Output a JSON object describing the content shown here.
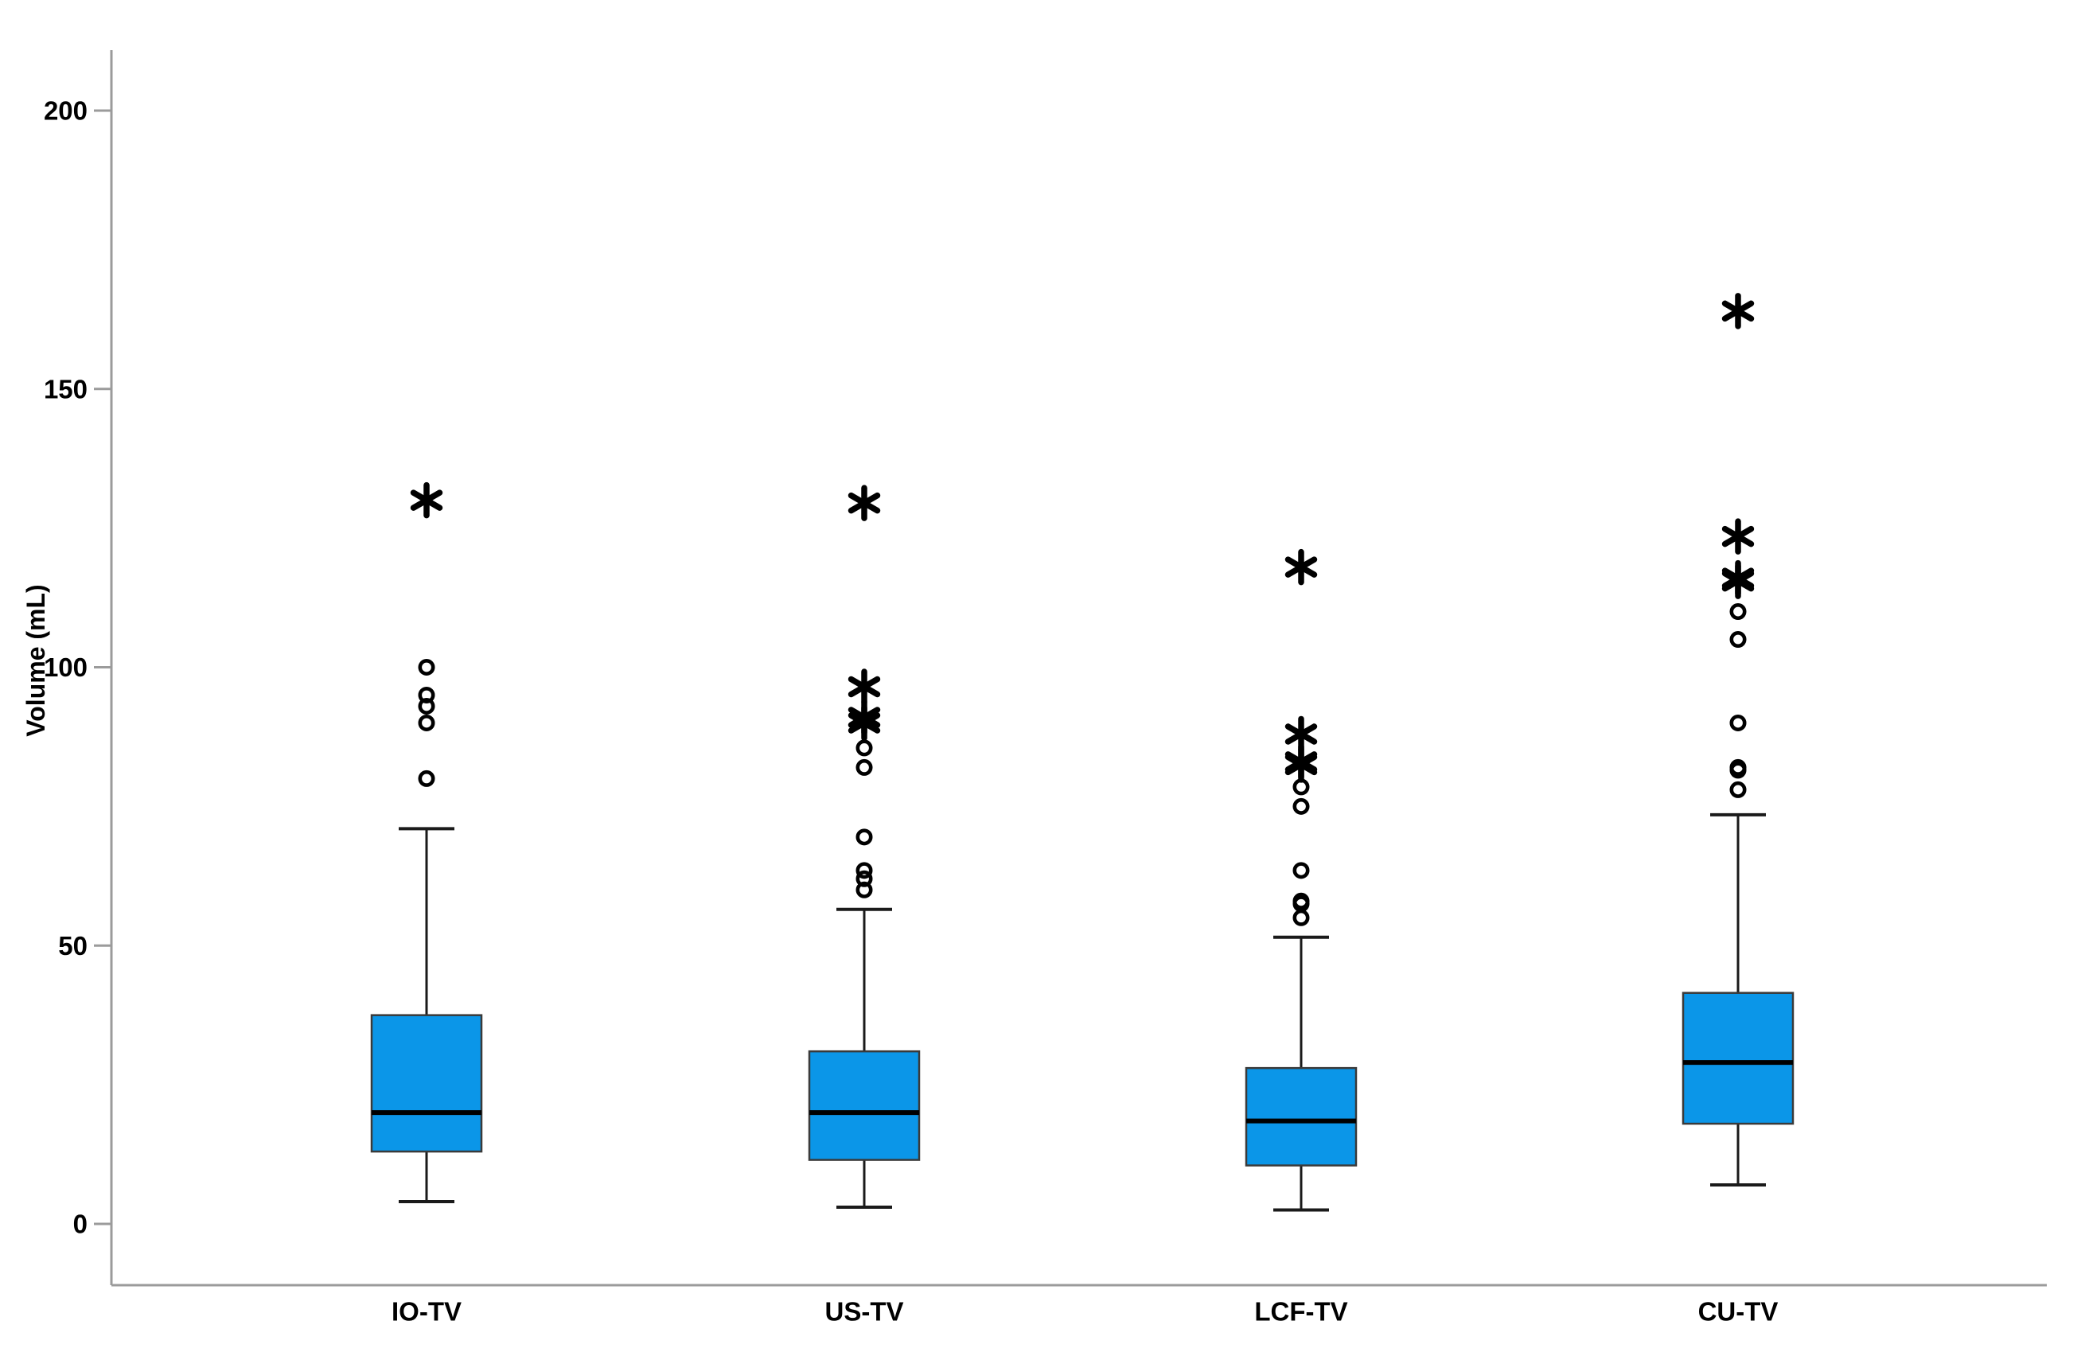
{
  "figure": {
    "background": "#ffffff"
  },
  "chart_data": {
    "type": "box",
    "title": "",
    "xlabel": "",
    "ylabel": "Volume (mL)",
    "ylim": [
      -11,
      211
    ],
    "yticks": [
      0,
      50,
      100,
      150,
      200
    ],
    "grid": false,
    "legend": "none",
    "categories": [
      "IO-TV",
      "US-TV",
      "LCF-TV",
      "CU-TV"
    ],
    "series": [
      {
        "category": "IO-TV",
        "whisker_low": 4,
        "q1": 13,
        "median": 20,
        "q3": 37.5,
        "whisker_high": 71,
        "outliers_circle": [
          80,
          90,
          93,
          95,
          100
        ],
        "outliers_extreme": [
          130
        ]
      },
      {
        "category": "US-TV",
        "whisker_low": 3,
        "q1": 11.5,
        "median": 20,
        "q3": 31,
        "whisker_high": 56.5,
        "outliers_circle": [
          60,
          62,
          63.5,
          69.5,
          82,
          85.5
        ],
        "outliers_extreme": [
          90,
          91,
          96.5,
          129.5
        ]
      },
      {
        "category": "LCF-TV",
        "whisker_low": 2.5,
        "q1": 10.5,
        "median": 18.5,
        "q3": 28,
        "whisker_high": 51.5,
        "outliers_circle": [
          55,
          57.5,
          58,
          63.5,
          75,
          78.5
        ],
        "outliers_extreme": [
          82.5,
          83,
          88,
          118
        ]
      },
      {
        "category": "CU-TV",
        "whisker_low": 7,
        "q1": 18,
        "median": 29,
        "q3": 41.5,
        "whisker_high": 73.5,
        "outliers_circle": [
          78,
          81.5,
          82,
          90,
          105,
          110
        ],
        "outliers_extreme": [
          115.5,
          116,
          123.5,
          164
        ]
      }
    ],
    "colors": {
      "box_fill": "#0b96e8",
      "box_border": "#3a3a3a",
      "median": "#000000",
      "whisker": "#1a1a1a",
      "outlier": "#000000",
      "axis": "#9b9b9b",
      "tick_label": "#000000"
    }
  }
}
